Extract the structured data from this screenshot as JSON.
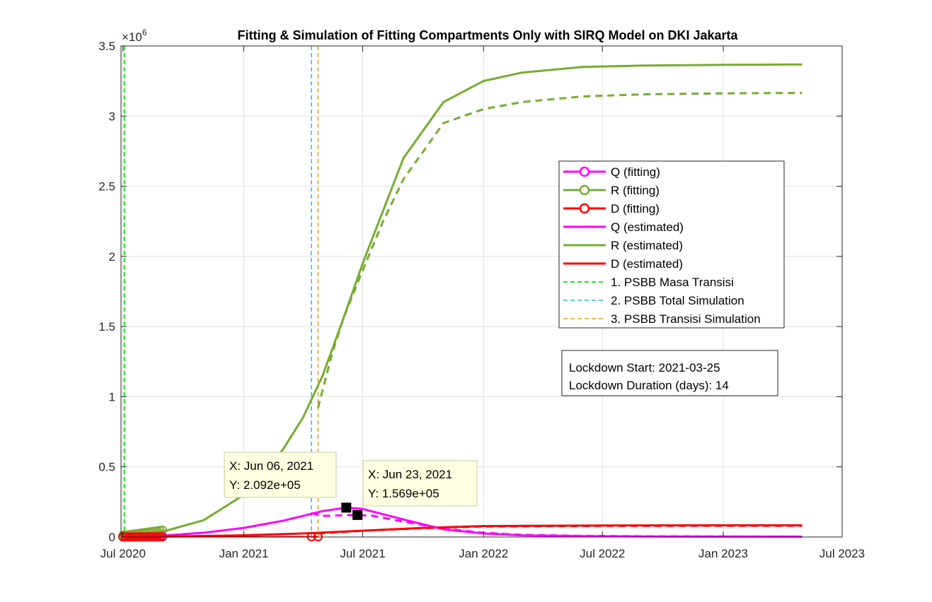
{
  "chart_data": {
    "type": "line",
    "title": "Fitting & Simulation of Fitting Compartments Only with SIRQ Model on DKI Jakarta",
    "xlabel": "",
    "ylabel": "",
    "y_exponent_label": "×10",
    "y_exponent_power": "6",
    "xlim": [
      "2020-06-28",
      "2023-07-01"
    ],
    "ylim": [
      0,
      3500000
    ],
    "grid": true,
    "legend_position": "right-middle",
    "x_ticks": [
      {
        "date": "2020-07-01",
        "label": "Jul 2020"
      },
      {
        "date": "2021-01-01",
        "label": "Jan 2021"
      },
      {
        "date": "2021-07-01",
        "label": "Jul 2021"
      },
      {
        "date": "2022-01-01",
        "label": "Jan 2022"
      },
      {
        "date": "2022-07-01",
        "label": "Jul 2022"
      },
      {
        "date": "2023-01-01",
        "label": "Jan 2023"
      },
      {
        "date": "2023-07-01",
        "label": "Jul 2023"
      }
    ],
    "y_ticks": [
      {
        "value": 0,
        "label": "0"
      },
      {
        "value": 500000,
        "label": "0.5"
      },
      {
        "value": 1000000,
        "label": "1"
      },
      {
        "value": 1500000,
        "label": "1.5"
      },
      {
        "value": 2000000,
        "label": "2"
      },
      {
        "value": 2500000,
        "label": "2.5"
      },
      {
        "value": 3000000,
        "label": "3"
      },
      {
        "value": 3500000,
        "label": "3.5"
      }
    ],
    "series": [
      {
        "name": "Q (fitting)",
        "color": "#ff00ff",
        "style": "marker-line",
        "x": [
          "2020-07-01",
          "2020-07-05",
          "2020-07-09",
          "2020-07-13",
          "2020-07-17",
          "2020-07-21",
          "2020-07-25",
          "2020-07-29",
          "2020-08-02",
          "2020-08-06",
          "2020-08-10",
          "2020-08-14",
          "2020-08-18",
          "2020-08-22",
          "2020-08-26",
          "2020-08-30"
        ],
        "y": [
          2000,
          2300,
          2600,
          2900,
          3200,
          3500,
          3800,
          4100,
          4400,
          4700,
          5000,
          5300,
          5600,
          5900,
          6200,
          6500
        ]
      },
      {
        "name": "R (fitting)",
        "color": "#77ac30",
        "style": "marker-line",
        "x": [
          "2020-07-01",
          "2020-07-05",
          "2020-07-09",
          "2020-07-13",
          "2020-07-17",
          "2020-07-21",
          "2020-07-25",
          "2020-07-29",
          "2020-08-02",
          "2020-08-06",
          "2020-08-10",
          "2020-08-14",
          "2020-08-18",
          "2020-08-22",
          "2020-08-26",
          "2020-08-30"
        ],
        "y": [
          12000,
          14000,
          16000,
          18500,
          21000,
          23500,
          26000,
          28500,
          31000,
          33500,
          36000,
          38500,
          41000,
          43500,
          46000,
          48500
        ]
      },
      {
        "name": "D (fitting)",
        "color": "#ff0000",
        "style": "marker-line",
        "x": [
          "2020-07-01",
          "2020-07-05",
          "2020-07-09",
          "2020-07-13",
          "2020-07-17",
          "2020-07-21",
          "2020-07-25",
          "2020-07-29",
          "2020-08-02",
          "2020-08-06",
          "2020-08-10",
          "2020-08-14",
          "2020-08-18",
          "2020-08-22",
          "2020-08-26",
          "2020-08-30",
          "2021-04-14",
          "2021-04-24"
        ],
        "y": [
          500,
          550,
          600,
          650,
          700,
          750,
          800,
          850,
          900,
          950,
          1000,
          1050,
          1100,
          1150,
          1200,
          1250,
          2000,
          2000
        ]
      },
      {
        "name": "Q (estimated)",
        "color": "#ff00ff",
        "style": "solid",
        "x": [
          "2020-07-01",
          "2020-09-01",
          "2020-11-01",
          "2021-01-01",
          "2021-03-01",
          "2021-04-01",
          "2021-05-01",
          "2021-06-06",
          "2021-07-01",
          "2021-09-01",
          "2021-11-01",
          "2022-01-01",
          "2022-03-01",
          "2022-06-01",
          "2022-09-01",
          "2023-01-01",
          "2023-05-01"
        ],
        "y": [
          2000,
          10000,
          30000,
          65000,
          115000,
          150000,
          185000,
          209200,
          200000,
          125000,
          55000,
          25000,
          12000,
          6000,
          4000,
          3000,
          2500
        ]
      },
      {
        "name": "R (estimated)",
        "color": "#77ac30",
        "style": "solid",
        "x": [
          "2020-07-01",
          "2020-09-01",
          "2020-11-01",
          "2021-01-01",
          "2021-03-01",
          "2021-04-01",
          "2021-05-01",
          "2021-06-01",
          "2021-07-01",
          "2021-09-01",
          "2021-11-01",
          "2022-01-01",
          "2022-03-01",
          "2022-06-01",
          "2022-09-01",
          "2023-01-01",
          "2023-05-01"
        ],
        "y": [
          12000,
          40000,
          120000,
          300000,
          620000,
          850000,
          1150000,
          1550000,
          1950000,
          2700000,
          3100000,
          3250000,
          3310000,
          3350000,
          3360000,
          3365000,
          3368000
        ]
      },
      {
        "name": "D (estimated)",
        "color": "#ff0000",
        "style": "solid",
        "x": [
          "2020-07-01",
          "2020-10-01",
          "2021-01-01",
          "2021-04-01",
          "2021-07-01",
          "2021-10-01",
          "2022-01-01",
          "2022-07-01",
          "2023-01-01",
          "2023-05-01"
        ],
        "y": [
          500,
          5000,
          12000,
          25000,
          45000,
          65000,
          78000,
          82000,
          83000,
          83000
        ]
      },
      {
        "name": "",
        "color": "#77ac30",
        "style": "dashed",
        "x": [
          "2021-04-24",
          "2021-05-15",
          "2021-06-01",
          "2021-07-01",
          "2021-08-01",
          "2021-09-01",
          "2021-11-01",
          "2022-01-01",
          "2022-03-01",
          "2022-06-01",
          "2022-09-01",
          "2023-01-01",
          "2023-05-01"
        ],
        "y": [
          920000,
          1300000,
          1550000,
          1900000,
          2250000,
          2550000,
          2950000,
          3050000,
          3100000,
          3140000,
          3155000,
          3162000,
          3165000
        ]
      },
      {
        "name": "",
        "color": "#ff00ff",
        "style": "dashed",
        "x": [
          "2021-04-14",
          "2021-05-01",
          "2021-06-01",
          "2021-06-23",
          "2021-07-15",
          "2021-09-01",
          "2021-11-01",
          "2022-01-01",
          "2022-03-01",
          "2022-06-01",
          "2022-09-01",
          "2023-01-01",
          "2023-05-01"
        ],
        "y": [
          170000,
          150000,
          155000,
          156900,
          152000,
          110000,
          60000,
          30000,
          15000,
          8000,
          5000,
          3500,
          3000
        ]
      },
      {
        "name": "",
        "color": "#ff0000",
        "style": "dashed",
        "x": [
          "2021-04-24",
          "2021-07-01",
          "2021-10-01",
          "2022-01-01",
          "2022-07-01",
          "2023-01-01",
          "2023-05-01"
        ],
        "y": [
          25000,
          45000,
          63000,
          75000,
          79000,
          80000,
          80000
        ]
      }
    ],
    "vlines": [
      {
        "name": "1. PSBB Masa Transisi",
        "color": "#00e600",
        "date": "2020-07-03"
      },
      {
        "name": "2. PSBB Total Simulation",
        "color": "#4dbeee",
        "date": "2021-04-14"
      },
      {
        "name": "3. PSBB Transisi Simulation",
        "color": "#edb120",
        "date": "2021-04-24"
      }
    ],
    "datatips": [
      {
        "x": "2021-06-06",
        "y": 209200,
        "x_text": "X: Jun 06, 2021",
        "y_text": "Y: 2.092e+05"
      },
      {
        "x": "2021-06-23",
        "y": 156900,
        "x_text": "X: Jun 23, 2021",
        "y_text": "Y: 1.569e+05"
      }
    ],
    "annotation": {
      "line1": "Lockdown Start: 2021-03-25",
      "line2": "Lockdown Duration (days): 14"
    }
  }
}
